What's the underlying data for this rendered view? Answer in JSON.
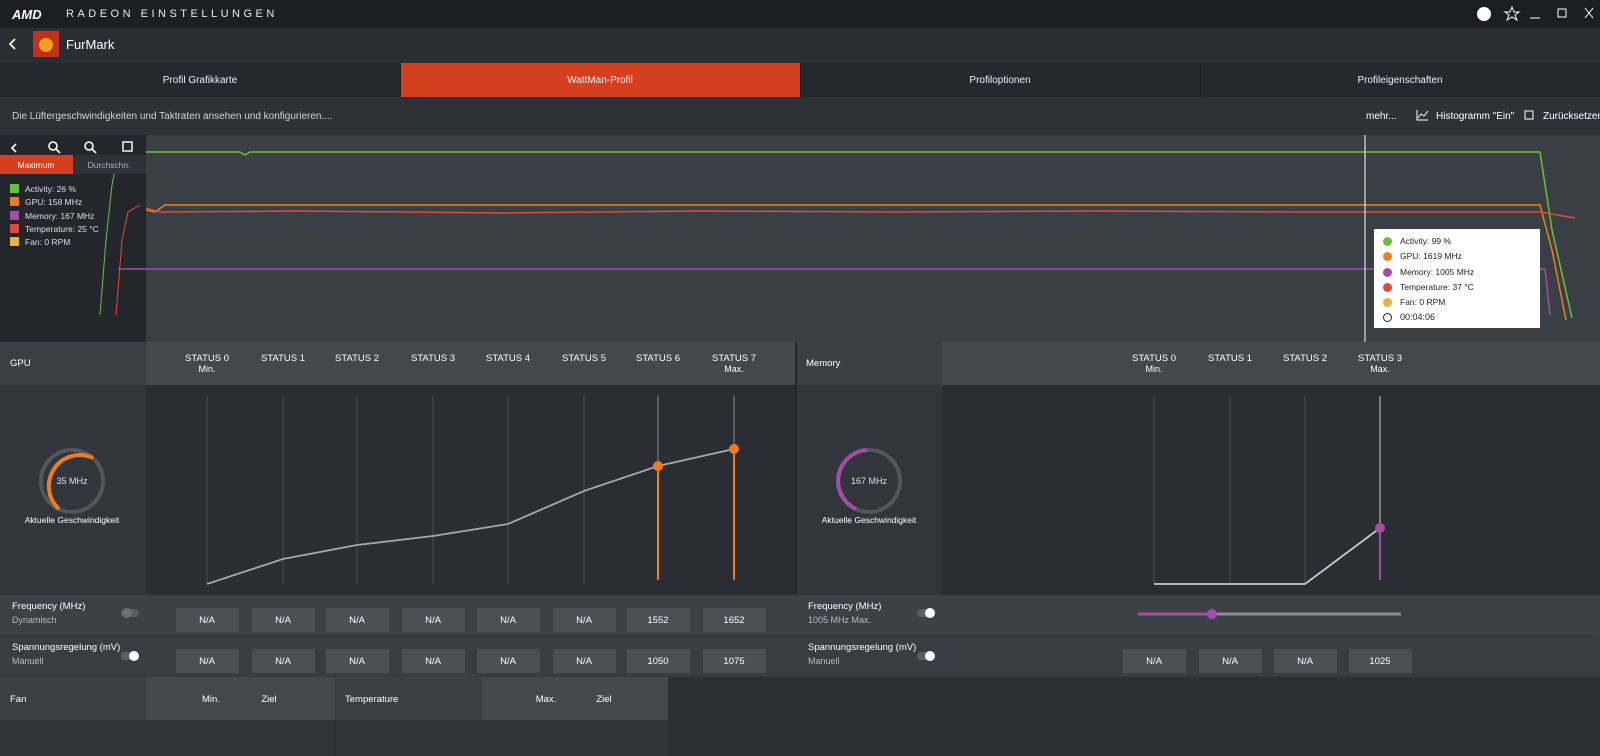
{
  "titlebar": {
    "brand": "AMD",
    "title": "RADEON EINSTELLUNGEN"
  },
  "app": {
    "name": "FurMark"
  },
  "tabs": [
    "Profil Grafikkarte",
    "WattMan-Profil",
    "Profiloptionen",
    "Profileigenschaften"
  ],
  "toolbar": {
    "description": "Die Lüftergeschwindigkeiten und Taktraten ansehen und konfigurieren....",
    "more": "mehr...",
    "histogram": "Histogramm \"Ein\"",
    "reset": "Zurücksetzen"
  },
  "monitor": {
    "modes": [
      "Maximum",
      "Durchschn."
    ],
    "legend": [
      "Activity: 26 %",
      "GPU: 158 MHz",
      "Memory: 167 MHz",
      "Temperature: 25 °C",
      "Fan: 0 RPM"
    ],
    "tooltip": [
      "Activity: 99 %",
      "GPU: 1619 MHz",
      "Memory: 1005 MHz",
      "Temperature: 37 °C",
      "Fan: 0 RPM"
    ],
    "tooltip_time": "00:04:06"
  },
  "gpu": {
    "title": "GPU",
    "states": [
      {
        "label": "STATUS 0",
        "sub": "Min."
      },
      {
        "label": "STATUS 1"
      },
      {
        "label": "STATUS 2"
      },
      {
        "label": "STATUS 3"
      },
      {
        "label": "STATUS 4"
      },
      {
        "label": "STATUS 5"
      },
      {
        "label": "STATUS 6"
      },
      {
        "label": "STATUS 7",
        "sub": "Max."
      }
    ],
    "gauge": {
      "value": "35 MHz",
      "label": "Aktuelle Geschwindigkeit"
    },
    "rows": [
      {
        "label": "Frequency (MHz)",
        "sub": "Dynamisch",
        "values": [
          "N/A",
          "N/A",
          "N/A",
          "N/A",
          "N/A",
          "N/A",
          "1552",
          "1652"
        ]
      },
      {
        "label": "Spannungsregelung (mV)",
        "sub": "Manuell",
        "values": [
          "N/A",
          "N/A",
          "N/A",
          "N/A",
          "N/A",
          "N/A",
          "1050",
          "1075"
        ]
      }
    ]
  },
  "memory": {
    "title": "Memory",
    "states": [
      {
        "label": "STATUS 0",
        "sub": "Min."
      },
      {
        "label": "STATUS 1"
      },
      {
        "label": "STATUS 2"
      },
      {
        "label": "STATUS 3",
        "sub": "Max."
      }
    ],
    "gauge": {
      "value": "167 MHz",
      "label": "Aktuelle Geschwindigkeit"
    },
    "rows": [
      {
        "label": "Frequency (MHz)",
        "sub": "1005 MHz Max."
      },
      {
        "label": "Spannungsregelung (mV)",
        "sub": "Manuell",
        "values": [
          "N/A",
          "N/A",
          "N/A",
          "1025"
        ]
      }
    ]
  },
  "fan": {
    "title": "Fan",
    "columns": [
      "Min.",
      "Ziel"
    ]
  },
  "temperature": {
    "title": "Temperature",
    "columns": [
      "Max.",
      "Ziel"
    ]
  }
}
